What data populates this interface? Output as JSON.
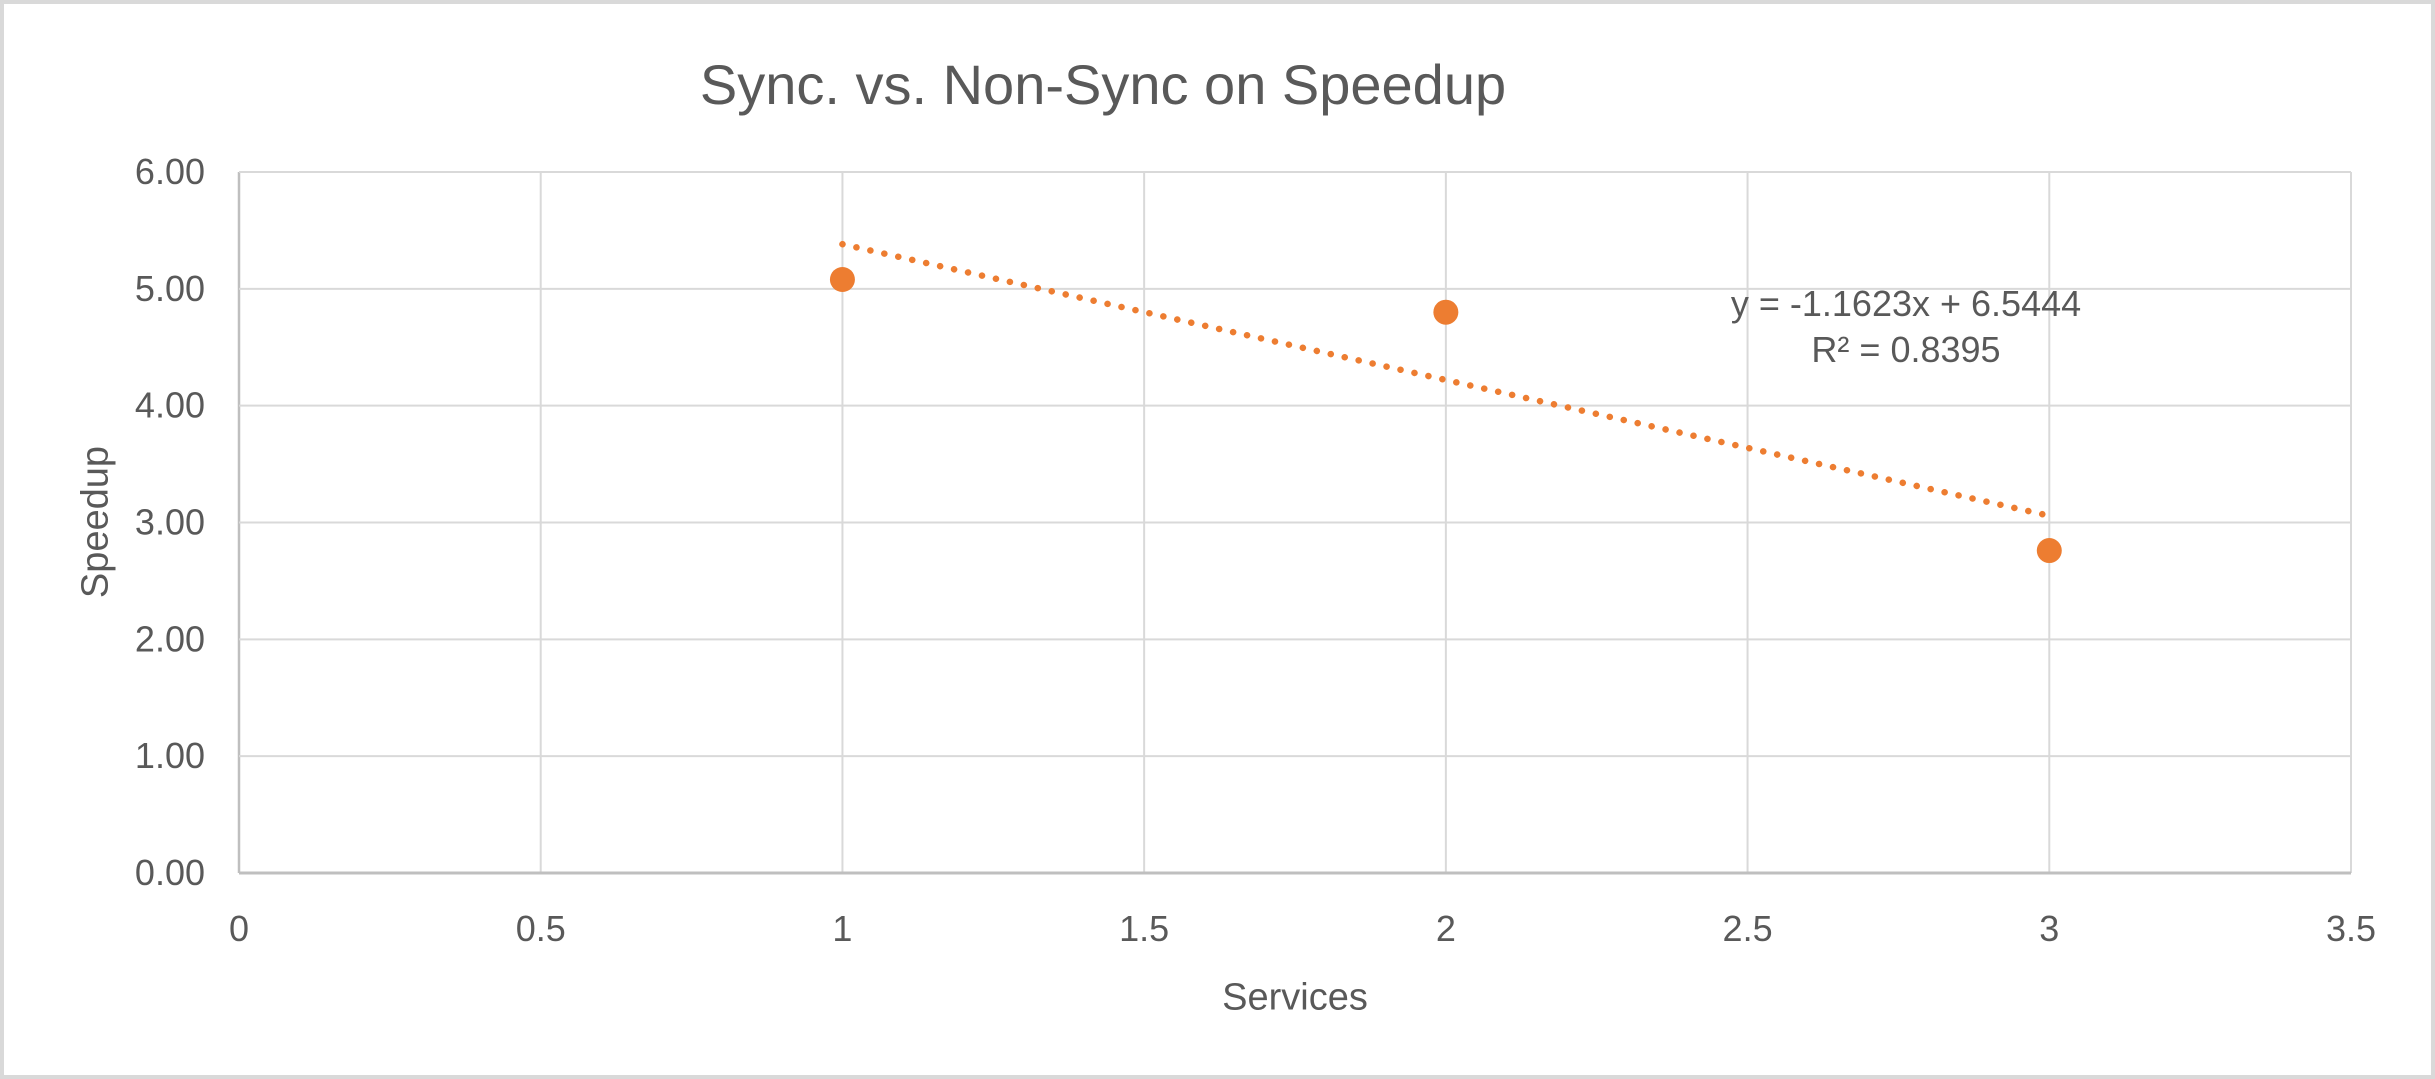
{
  "chart_data": {
    "type": "scatter",
    "title": "Sync. vs. Non-Sync on Speedup",
    "xlabel": "Services",
    "ylabel": "Speedup",
    "xlim": [
      0,
      3.5
    ],
    "ylim": [
      0,
      6
    ],
    "x_ticks": [
      0,
      0.5,
      1,
      1.5,
      2,
      2.5,
      3,
      3.5
    ],
    "x_tick_labels": [
      "0",
      "0.5",
      "1",
      "1.5",
      "2",
      "2.5",
      "3",
      "3.5"
    ],
    "y_ticks": [
      0,
      1,
      2,
      3,
      4,
      5,
      6
    ],
    "y_tick_labels": [
      "0.00",
      "1.00",
      "2.00",
      "3.00",
      "4.00",
      "5.00",
      "6.00"
    ],
    "grid": true,
    "legend": false,
    "series": [
      {
        "name": "Speedup",
        "marker": "circle",
        "color": "#ED7D31",
        "x": [
          1,
          2,
          3
        ],
        "y": [
          5.08,
          4.8,
          2.76
        ]
      }
    ],
    "trendline": {
      "type": "linear",
      "style": "dotted",
      "color": "#ED7D31",
      "slope": -1.1623,
      "intercept": 6.5444,
      "x_start": 1,
      "x_end": 3,
      "equation": "y = -1.1623x + 6.5444",
      "r_squared_label": "R² = 0.8395",
      "r_squared": 0.8395
    },
    "colors": {
      "accent": "#ED7D31",
      "grid": "#D9D9D9",
      "axis": "#BFBFBF",
      "text": "#595959",
      "border": "#D9D9D9"
    }
  }
}
